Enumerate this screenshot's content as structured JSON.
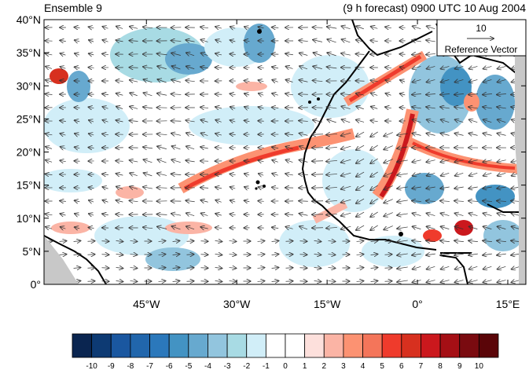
{
  "header": {
    "left_title": "Ensemble 9",
    "right_title": "(9 h forecast) 0900 UTC 10 Aug 2004"
  },
  "map": {
    "lon_range": [
      -62,
      18
    ],
    "lat_range": [
      0,
      40
    ],
    "lat_labels": [
      "0°",
      "5°N",
      "10°N",
      "15°N",
      "20°N",
      "25°N",
      "30°N",
      "35°N",
      "40°N"
    ],
    "lat_values": [
      0,
      5,
      10,
      15,
      20,
      25,
      30,
      35,
      40
    ],
    "lon_labels": [
      "45°W",
      "30°W",
      "15°W",
      "0°",
      "15°E"
    ],
    "lon_values": [
      -45,
      -30,
      -15,
      0,
      15
    ]
  },
  "reference_vector": {
    "magnitude": "10",
    "label": "Reference Vector"
  },
  "colorbar": {
    "labels": [
      "-10",
      "-9",
      "-8",
      "-7",
      "-6",
      "-5",
      "-4",
      "-3",
      "-2",
      "-1",
      "0",
      "1",
      "2",
      "3",
      "4",
      "5",
      "6",
      "7",
      "8",
      "9",
      "10"
    ],
    "colors": [
      "#0a2550",
      "#0d3a73",
      "#1a57a0",
      "#2166ac",
      "#2b78bb",
      "#4393c3",
      "#67a9cf",
      "#92c5de",
      "#a8dbe4",
      "#d1eef8",
      "#ffffff",
      "#ffffff",
      "#fde0dc",
      "#fbb4a5",
      "#fc9272",
      "#f4755a",
      "#ef3b2c",
      "#d7301f",
      "#cb181d",
      "#a50f15",
      "#7a0b10",
      "#5a0508"
    ]
  }
}
